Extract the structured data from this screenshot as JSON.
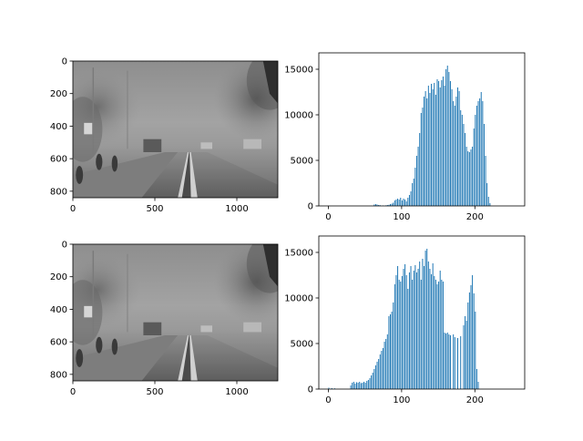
{
  "figure": {
    "background": "#ffffff",
    "bar_color": "#1f77b4"
  },
  "chart_data": [
    {
      "type": "image",
      "name": "original-foggy-road-image",
      "xticks": [
        0,
        500,
        1000
      ],
      "yticks": [
        0,
        200,
        400,
        600,
        800
      ],
      "xlim": [
        0,
        1250
      ],
      "ylim": [
        840,
        0
      ],
      "grayscale": true
    },
    {
      "type": "bar",
      "name": "original-histogram",
      "xticks": [
        0,
        100,
        200
      ],
      "yticks": [
        0,
        5000,
        10000,
        15000
      ],
      "xlim": [
        -13,
        268
      ],
      "ylim": [
        0,
        16800
      ],
      "bins": [
        [
          62,
          150
        ],
        [
          64,
          200
        ],
        [
          66,
          150
        ],
        [
          68,
          100
        ],
        [
          70,
          80
        ],
        [
          74,
          50
        ],
        [
          78,
          60
        ],
        [
          80,
          100
        ],
        [
          82,
          120
        ],
        [
          84,
          200
        ],
        [
          86,
          250
        ],
        [
          88,
          350
        ],
        [
          90,
          600
        ],
        [
          92,
          700
        ],
        [
          94,
          800
        ],
        [
          96,
          700
        ],
        [
          98,
          900
        ],
        [
          100,
          600
        ],
        [
          102,
          800
        ],
        [
          104,
          700
        ],
        [
          106,
          500
        ],
        [
          108,
          900
        ],
        [
          110,
          1200
        ],
        [
          112,
          1600
        ],
        [
          114,
          2500
        ],
        [
          116,
          3000
        ],
        [
          118,
          4200
        ],
        [
          120,
          5500
        ],
        [
          122,
          6500
        ],
        [
          124,
          8000
        ],
        [
          126,
          10200
        ],
        [
          128,
          10800
        ],
        [
          130,
          12000
        ],
        [
          132,
          12600
        ],
        [
          134,
          11800
        ],
        [
          136,
          13200
        ],
        [
          138,
          12400
        ],
        [
          140,
          13400
        ],
        [
          142,
          12800
        ],
        [
          144,
          13500
        ],
        [
          146,
          12200
        ],
        [
          148,
          13900
        ],
        [
          150,
          13700
        ],
        [
          152,
          13000
        ],
        [
          154,
          13800
        ],
        [
          156,
          14200
        ],
        [
          158,
          13200
        ],
        [
          160,
          15000
        ],
        [
          162,
          15400
        ],
        [
          164,
          14700
        ],
        [
          166,
          13700
        ],
        [
          168,
          12800
        ],
        [
          170,
          11500
        ],
        [
          172,
          11000
        ],
        [
          174,
          12000
        ],
        [
          176,
          13000
        ],
        [
          178,
          12600
        ],
        [
          180,
          10500
        ],
        [
          182,
          10000
        ],
        [
          184,
          9000
        ],
        [
          186,
          8000
        ],
        [
          188,
          6500
        ],
        [
          190,
          6000
        ],
        [
          192,
          5900
        ],
        [
          194,
          6200
        ],
        [
          196,
          6500
        ],
        [
          198,
          8500
        ],
        [
          200,
          10000
        ],
        [
          202,
          11000
        ],
        [
          204,
          11500
        ],
        [
          206,
          11800
        ],
        [
          208,
          12500
        ],
        [
          210,
          11500
        ],
        [
          212,
          9000
        ],
        [
          214,
          5500
        ],
        [
          216,
          2500
        ],
        [
          218,
          1000
        ],
        [
          220,
          300
        ]
      ]
    },
    {
      "type": "image",
      "name": "enhanced-foggy-road-image",
      "xticks": [
        0,
        500,
        1000
      ],
      "yticks": [
        0,
        200,
        400,
        600,
        800
      ],
      "xlim": [
        0,
        1250
      ],
      "ylim": [
        840,
        0
      ],
      "grayscale": true
    },
    {
      "type": "bar",
      "name": "enhanced-histogram",
      "xticks": [
        0,
        100,
        200
      ],
      "yticks": [
        0,
        5000,
        10000,
        15000
      ],
      "xlim": [
        -13,
        268
      ],
      "ylim": [
        0,
        16800
      ],
      "bins": [
        [
          0,
          150
        ],
        [
          4,
          100
        ],
        [
          8,
          80
        ],
        [
          30,
          400
        ],
        [
          32,
          700
        ],
        [
          34,
          800
        ],
        [
          36,
          600
        ],
        [
          38,
          750
        ],
        [
          40,
          700
        ],
        [
          42,
          800
        ],
        [
          44,
          650
        ],
        [
          46,
          700
        ],
        [
          48,
          800
        ],
        [
          50,
          700
        ],
        [
          52,
          900
        ],
        [
          54,
          1000
        ],
        [
          56,
          1200
        ],
        [
          58,
          1500
        ],
        [
          60,
          1800
        ],
        [
          62,
          2200
        ],
        [
          64,
          2600
        ],
        [
          66,
          3000
        ],
        [
          68,
          3300
        ],
        [
          70,
          3800
        ],
        [
          72,
          4200
        ],
        [
          74,
          4500
        ],
        [
          76,
          5200
        ],
        [
          78,
          5500
        ],
        [
          80,
          6000
        ],
        [
          82,
          8000
        ],
        [
          84,
          8200
        ],
        [
          86,
          8500
        ],
        [
          88,
          9500
        ],
        [
          90,
          11500
        ],
        [
          92,
          12500
        ],
        [
          94,
          13500
        ],
        [
          96,
          12000
        ],
        [
          98,
          11800
        ],
        [
          100,
          12400
        ],
        [
          102,
          13200
        ],
        [
          104,
          13700
        ],
        [
          106,
          12500
        ],
        [
          108,
          11000
        ],
        [
          110,
          12800
        ],
        [
          112,
          13500
        ],
        [
          114,
          12000
        ],
        [
          116,
          13000
        ],
        [
          118,
          13600
        ],
        [
          120,
          12800
        ],
        [
          122,
          13200
        ],
        [
          124,
          14000
        ],
        [
          126,
          12000
        ],
        [
          128,
          14300
        ],
        [
          130,
          13500
        ],
        [
          132,
          15200
        ],
        [
          134,
          15400
        ],
        [
          136,
          14000
        ],
        [
          138,
          13200
        ],
        [
          140,
          12600
        ],
        [
          142,
          13800
        ],
        [
          144,
          12400
        ],
        [
          146,
          12000
        ],
        [
          148,
          11500
        ],
        [
          150,
          11800
        ],
        [
          152,
          13000
        ],
        [
          154,
          12000
        ],
        [
          156,
          11800
        ],
        [
          158,
          6200
        ],
        [
          160,
          6100
        ],
        [
          162,
          6200
        ],
        [
          164,
          6000
        ],
        [
          166,
          5900
        ],
        [
          170,
          6000
        ],
        [
          172,
          5700
        ],
        [
          176,
          5600
        ],
        [
          180,
          5800
        ],
        [
          184,
          7000
        ],
        [
          186,
          8000
        ],
        [
          188,
          7500
        ],
        [
          190,
          9500
        ],
        [
          192,
          10600
        ],
        [
          194,
          11400
        ],
        [
          196,
          12500
        ],
        [
          198,
          10500
        ],
        [
          200,
          8500
        ],
        [
          202,
          2200
        ],
        [
          204,
          800
        ]
      ]
    }
  ]
}
